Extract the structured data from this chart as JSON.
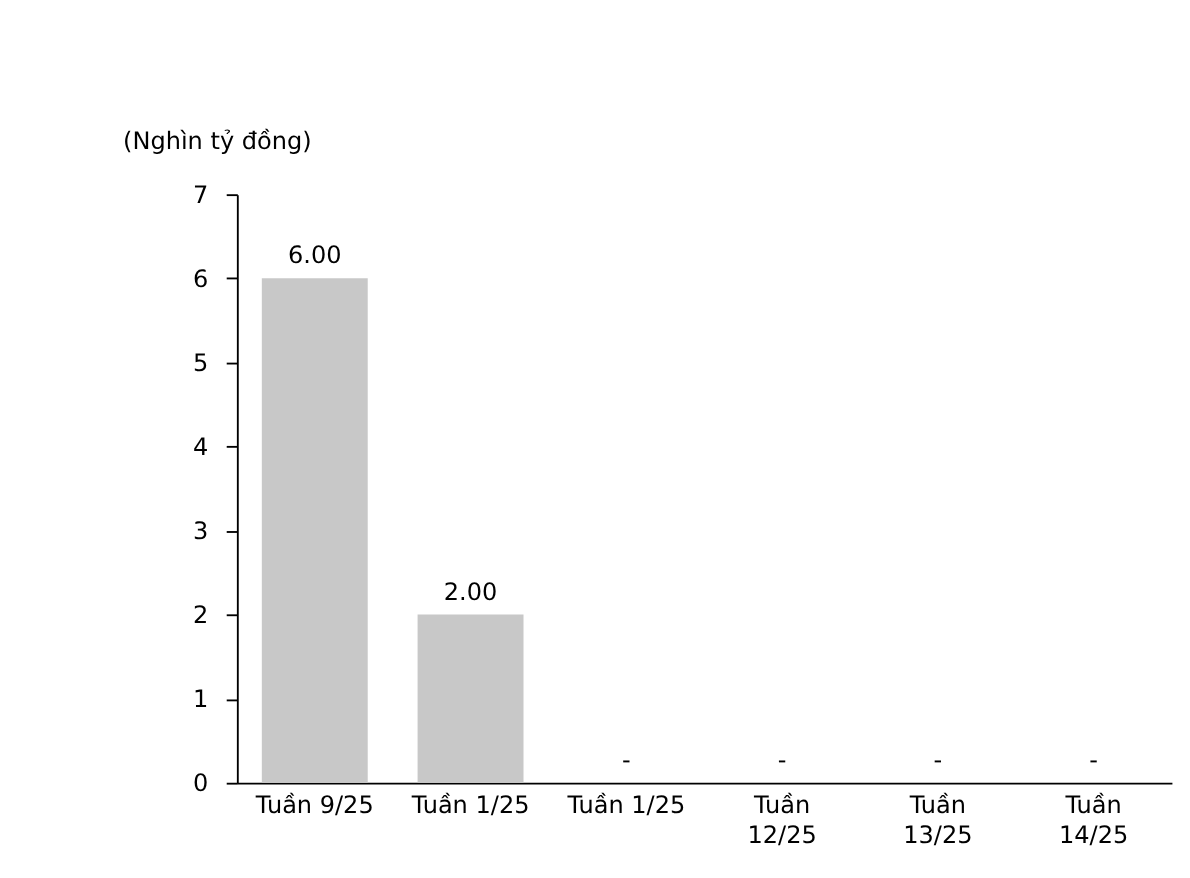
{
  "chart_data": {
    "type": "bar",
    "ylabel": "(Nghìn tỷ đồng)",
    "categories": [
      "Tuần 9/25",
      "Tuần 1/25",
      "Tuần 1/25",
      "Tuần 12/25",
      "Tuần 13/25",
      "Tuần 14/25"
    ],
    "values": [
      6,
      2,
      0,
      0,
      0,
      0
    ],
    "value_labels": [
      "6.00",
      "2.00",
      "-",
      "-",
      "-",
      "-"
    ],
    "color": "#c8c8c8",
    "ylim": [
      0,
      7
    ],
    "yticks": [
      0,
      1,
      2,
      3,
      4,
      5,
      6,
      7
    ],
    "grid": false
  }
}
